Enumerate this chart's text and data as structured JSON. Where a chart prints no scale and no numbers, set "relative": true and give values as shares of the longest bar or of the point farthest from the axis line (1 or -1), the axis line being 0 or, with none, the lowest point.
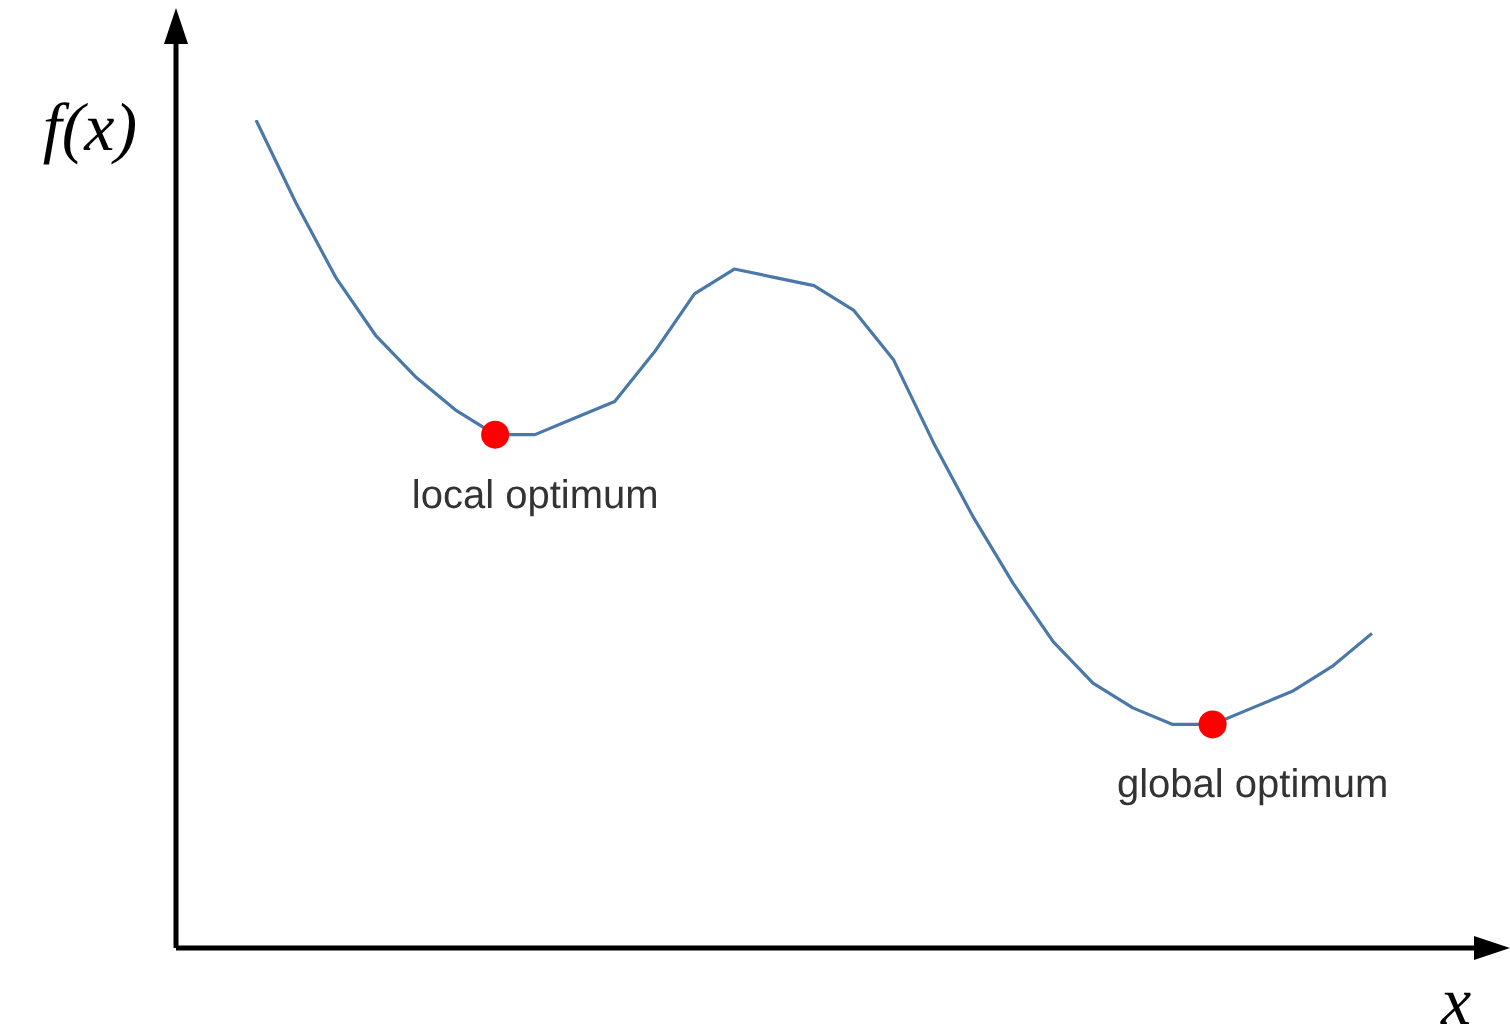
{
  "chart_data": {
    "type": "line",
    "relative": true,
    "xlabel": "x",
    "ylabel": "f(x)",
    "marker": "none",
    "line_style": "solid",
    "categories": [
      null,
      null,
      null,
      null,
      null,
      null,
      null,
      null,
      null,
      null,
      null,
      null,
      null,
      null,
      null,
      null,
      null,
      null,
      null,
      null,
      null,
      null,
      null,
      null,
      null,
      null,
      null,
      null,
      null
    ],
    "series": [
      {
        "color": "#4a78a8",
        "values": [
          1.0,
          0.9,
          0.81,
          0.74,
          0.69,
          0.65,
          0.62,
          0.62,
          0.64,
          0.66,
          0.72,
          0.79,
          0.82,
          0.81,
          0.8,
          0.77,
          0.71,
          0.61,
          0.52,
          0.44,
          0.37,
          0.32,
          0.29,
          0.27,
          0.27,
          0.29,
          0.31,
          0.34,
          0.38
        ],
        "colors": [
          null,
          null,
          null,
          null,
          null,
          null,
          "#ff0000",
          null,
          null,
          null,
          null,
          null,
          null,
          null,
          null,
          null,
          null,
          null,
          null,
          null,
          null,
          null,
          null,
          null,
          "#ff0000",
          null,
          null,
          null,
          null
        ]
      }
    ],
    "annotations": [
      "local optimum",
      "global optimum"
    ]
  }
}
